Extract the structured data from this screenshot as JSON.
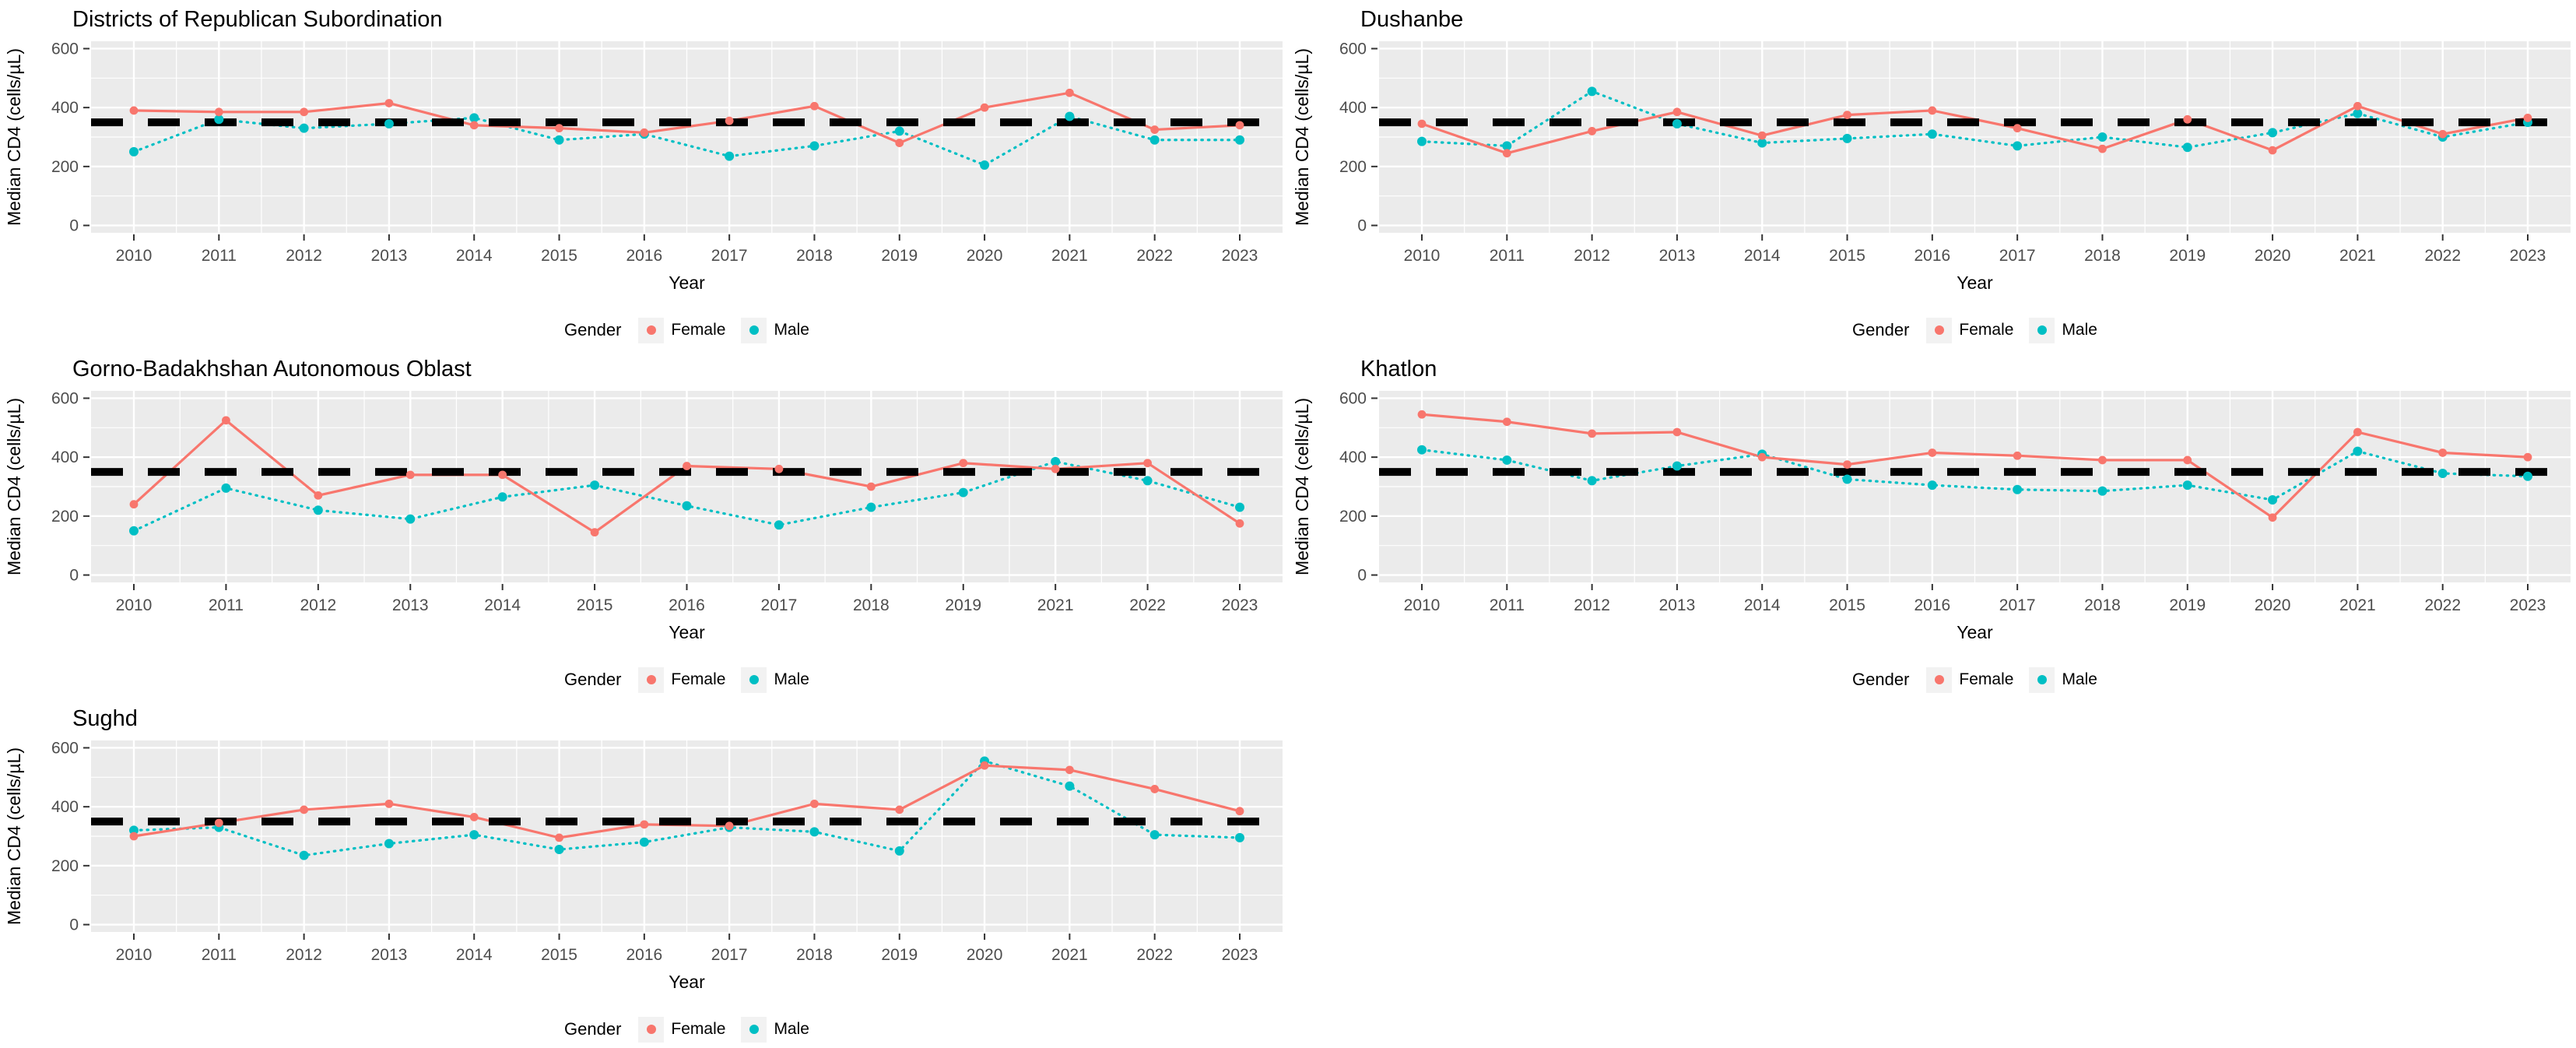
{
  "style": {
    "female_color": "#F8766D",
    "male_color": "#00BFC4",
    "panel_bg": "#EBEBEB",
    "gridline_color": "#FFFFFF",
    "ref_line_color": "#000000",
    "tick_label_color": "#4D4D4D",
    "axis_title_color": "#000000",
    "title_color": "#000000",
    "legend_key_bg": "#F2F2F2",
    "page_bg": "#FFFFFF"
  },
  "axes": {
    "x_label": "Year",
    "y_label": "Median CD4 (cells/µL)",
    "y_ticks": [
      0,
      200,
      400,
      600
    ],
    "y_minor_ticks": [
      100,
      300,
      500
    ],
    "y_domain": [
      -25,
      625
    ]
  },
  "reference_line": {
    "value": 350,
    "style": "dashed",
    "color": "#000000"
  },
  "legend": {
    "title": "Gender",
    "entries": [
      {
        "label": "Female",
        "color": "#F8766D"
      },
      {
        "label": "Male",
        "color": "#00BFC4"
      }
    ]
  },
  "chart_data": [
    {
      "type": "line",
      "title": "Districts of Republican Subordination",
      "slug": "districts-of-republican-subordination",
      "grid_row": 0,
      "grid_col": 0,
      "xlabel": "Year",
      "ylabel": "Median CD4 (cells/µL)",
      "ylim": [
        0,
        600
      ],
      "ref_y": 350,
      "legend_position": "bottom",
      "x": [
        2010,
        2011,
        2012,
        2013,
        2014,
        2015,
        2016,
        2017,
        2018,
        2019,
        2020,
        2021,
        2022,
        2023
      ],
      "series": [
        {
          "name": "Female",
          "values": [
            390,
            385,
            385,
            415,
            340,
            330,
            315,
            355,
            405,
            280,
            400,
            450,
            325,
            340
          ]
        },
        {
          "name": "Male",
          "values": [
            250,
            360,
            330,
            345,
            365,
            290,
            310,
            235,
            270,
            320,
            205,
            370,
            290,
            290
          ]
        }
      ]
    },
    {
      "type": "line",
      "title": "Dushanbe",
      "slug": "dushanbe",
      "grid_row": 0,
      "grid_col": 1,
      "xlabel": "Year",
      "ylabel": "Median CD4 (cells/µL)",
      "ylim": [
        0,
        600
      ],
      "ref_y": 350,
      "legend_position": "bottom",
      "x": [
        2010,
        2011,
        2012,
        2013,
        2014,
        2015,
        2016,
        2017,
        2018,
        2019,
        2020,
        2021,
        2022,
        2023
      ],
      "series": [
        {
          "name": "Female",
          "values": [
            345,
            245,
            320,
            385,
            305,
            375,
            390,
            330,
            260,
            360,
            255,
            405,
            310,
            365
          ]
        },
        {
          "name": "Male",
          "values": [
            285,
            270,
            455,
            345,
            280,
            295,
            310,
            270,
            300,
            265,
            315,
            380,
            300,
            350
          ]
        }
      ]
    },
    {
      "type": "line",
      "title": "Gorno-Badakhshan Autonomous Oblast",
      "slug": "gorno-badakhshan-autonomous-oblast",
      "grid_row": 1,
      "grid_col": 0,
      "xlabel": "Year",
      "ylabel": "Median CD4 (cells/µL)",
      "ylim": [
        0,
        600
      ],
      "ref_y": 350,
      "legend_position": "bottom",
      "x": [
        2010,
        2011,
        2012,
        2013,
        2014,
        2015,
        2016,
        2017,
        2018,
        2019,
        2021,
        2022,
        2023
      ],
      "series": [
        {
          "name": "Female",
          "values": [
            240,
            525,
            270,
            340,
            340,
            145,
            370,
            360,
            300,
            380,
            360,
            380,
            175
          ]
        },
        {
          "name": "Male",
          "values": [
            150,
            295,
            220,
            190,
            265,
            305,
            235,
            170,
            230,
            280,
            385,
            320,
            230
          ]
        }
      ]
    },
    {
      "type": "line",
      "title": "Khatlon",
      "slug": "khatlon",
      "grid_row": 1,
      "grid_col": 1,
      "xlabel": "Year",
      "ylabel": "Median CD4 (cells/µL)",
      "ylim": [
        0,
        600
      ],
      "ref_y": 350,
      "legend_position": "bottom",
      "x": [
        2010,
        2011,
        2012,
        2013,
        2014,
        2015,
        2016,
        2017,
        2018,
        2019,
        2020,
        2021,
        2022,
        2023
      ],
      "series": [
        {
          "name": "Female",
          "values": [
            545,
            520,
            480,
            485,
            400,
            375,
            415,
            405,
            390,
            390,
            195,
            485,
            415,
            400
          ]
        },
        {
          "name": "Male",
          "values": [
            425,
            390,
            320,
            370,
            410,
            325,
            305,
            290,
            285,
            305,
            255,
            420,
            345,
            335
          ]
        }
      ]
    },
    {
      "type": "line",
      "title": "Sughd",
      "slug": "sughd",
      "grid_row": 2,
      "grid_col": 0,
      "xlabel": "Year",
      "ylabel": "Median CD4 (cells/µL)",
      "ylim": [
        0,
        600
      ],
      "ref_y": 350,
      "legend_position": "bottom",
      "x": [
        2010,
        2011,
        2012,
        2013,
        2014,
        2015,
        2016,
        2017,
        2018,
        2019,
        2020,
        2021,
        2022,
        2023
      ],
      "series": [
        {
          "name": "Female",
          "values": [
            300,
            345,
            390,
            410,
            365,
            295,
            340,
            335,
            410,
            390,
            540,
            525,
            460,
            385
          ]
        },
        {
          "name": "Male",
          "values": [
            320,
            330,
            235,
            275,
            305,
            255,
            280,
            330,
            315,
            250,
            555,
            470,
            305,
            295
          ]
        }
      ]
    }
  ]
}
